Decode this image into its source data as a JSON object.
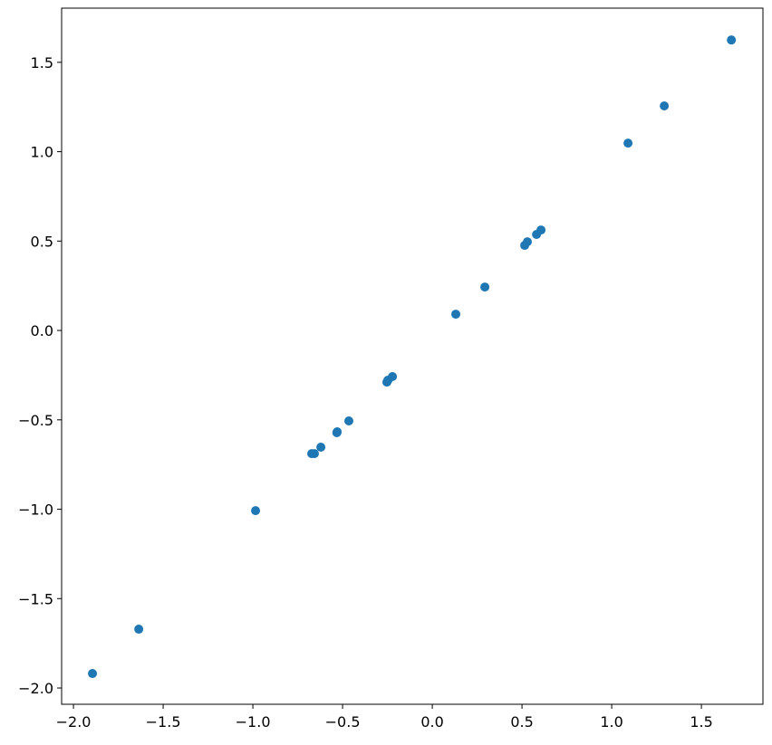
{
  "chart_data": {
    "type": "scatter",
    "title": "",
    "xlabel": "",
    "ylabel": "",
    "xlim": [
      -2.066,
      1.843
    ],
    "ylim": [
      -2.091,
      1.803
    ],
    "grid": false,
    "marker_color": "#1f77b4",
    "xticks": [
      -2.0,
      -1.5,
      -1.0,
      -0.5,
      0.0,
      0.5,
      1.0,
      1.5
    ],
    "xtick_labels": [
      "−2.0",
      "−1.5",
      "−1.0",
      "−0.5",
      "0.0",
      "0.5",
      "1.0",
      "1.5"
    ],
    "yticks": [
      -2.0,
      -1.5,
      -1.0,
      -0.5,
      0.0,
      0.5,
      1.0,
      1.5
    ],
    "ytick_labels": [
      "−2.0",
      "−1.5",
      "−1.0",
      "−0.5",
      "0.0",
      "0.5",
      "1.0",
      "1.5"
    ],
    "points": [
      {
        "x": 1.667,
        "y": 1.625
      },
      {
        "x": 1.293,
        "y": 1.256
      },
      {
        "x": 1.091,
        "y": 1.048
      },
      {
        "x": 0.606,
        "y": 0.562
      },
      {
        "x": 0.581,
        "y": 0.537
      },
      {
        "x": 0.53,
        "y": 0.496
      },
      {
        "x": 0.515,
        "y": 0.476
      },
      {
        "x": 0.293,
        "y": 0.243
      },
      {
        "x": 0.131,
        "y": 0.091
      },
      {
        "x": -0.222,
        "y": -0.258
      },
      {
        "x": -0.247,
        "y": -0.278
      },
      {
        "x": -0.253,
        "y": -0.289
      },
      {
        "x": -0.465,
        "y": -0.506
      },
      {
        "x": -0.53,
        "y": -0.567
      },
      {
        "x": -0.532,
        "y": -0.572
      },
      {
        "x": -0.621,
        "y": -0.653
      },
      {
        "x": -0.657,
        "y": -0.689
      },
      {
        "x": -0.672,
        "y": -0.689
      },
      {
        "x": -0.985,
        "y": -1.008
      },
      {
        "x": -1.636,
        "y": -1.671
      },
      {
        "x": -1.894,
        "y": -1.919
      }
    ]
  }
}
